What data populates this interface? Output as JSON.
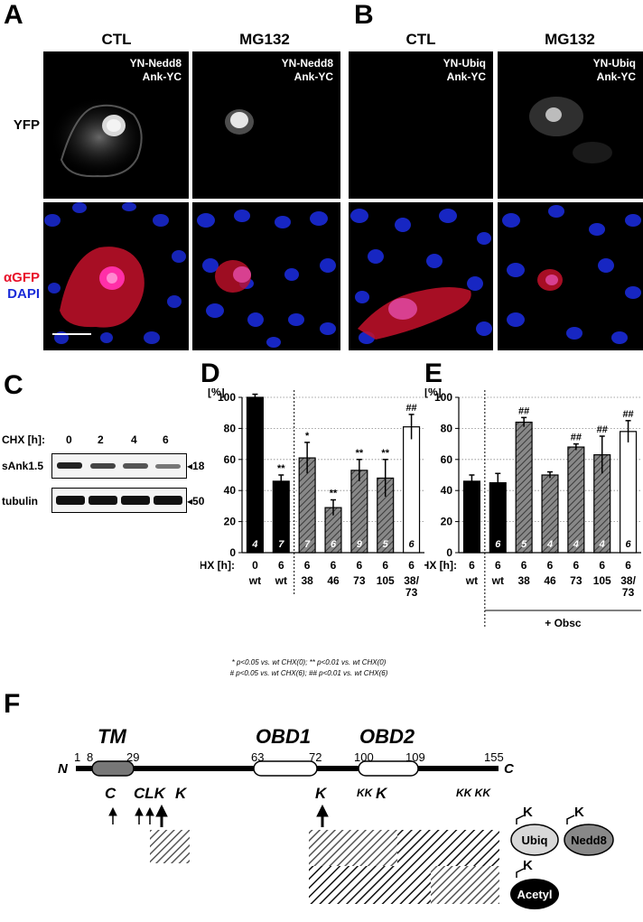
{
  "panel_letters": {
    "A": "A",
    "B": "B",
    "C": "C",
    "D": "D",
    "E": "E",
    "F": "F"
  },
  "panel_a": {
    "col1": "CTL",
    "col2": "MG132",
    "label1": "YN-Nedd8\nAnk-YC",
    "label2": "YN-Nedd8\nAnk-YC",
    "row1": "YFP",
    "row2_a": "αGFP",
    "row2_b": "DAPI"
  },
  "panel_b": {
    "col1": "CTL",
    "col2": "MG132",
    "label1": "YN-Ubiq\nAnk-YC",
    "label2": "YN-Ubiq\nAnk-YC"
  },
  "panel_c": {
    "chx_label": "CHX [h]:",
    "chx_values": [
      "0",
      "2",
      "4",
      "6"
    ],
    "bands": [
      {
        "name": "sAnk1.5",
        "marker": "18"
      },
      {
        "name": "tubulin",
        "marker": "50"
      }
    ]
  },
  "colors": {
    "red_stain": "#e8102a",
    "blue_stain": "#1a2bd8",
    "black_bar": "#000000",
    "hatched_bar": "#777777",
    "white_bar": "#ffffff"
  },
  "chart_data": [
    {
      "type": "bar",
      "panel": "D",
      "ylabel": "[%]",
      "ylim": [
        0,
        100
      ],
      "yticks": [
        0,
        20,
        40,
        60,
        80,
        100
      ],
      "grid": true,
      "categories": [
        "wt",
        "wt",
        "38",
        "46",
        "73",
        "105",
        "38/\n73"
      ],
      "chx_label": "CHX [h]:",
      "chx": [
        "0",
        "6",
        "6",
        "6",
        "6",
        "6",
        "6"
      ],
      "values": [
        100,
        46,
        61,
        29,
        53,
        48,
        81
      ],
      "errors": [
        2,
        4,
        10,
        5,
        7,
        12,
        8
      ],
      "n": [
        "4",
        "7",
        "7",
        "6",
        "9",
        "5",
        "6"
      ],
      "styles": [
        "black",
        "black",
        "hatched",
        "hatched",
        "hatched",
        "hatched",
        "white"
      ],
      "significance": [
        "",
        "**",
        "*",
        "**",
        "**",
        "**",
        "##"
      ],
      "footnote_line1": "* p<0.05 vs. wt CHX(0); ** p<0.01 vs. wt CHX(0)",
      "footnote_line2": "# p<0.05 vs. wt CHX(6); ## p<0.01 vs. wt CHX(6)"
    },
    {
      "type": "bar",
      "panel": "E",
      "ylabel": "[%]",
      "ylim": [
        0,
        100
      ],
      "yticks": [
        0,
        20,
        40,
        60,
        80,
        100
      ],
      "grid": true,
      "categories": [
        "wt",
        "wt",
        "38",
        "46",
        "73",
        "105",
        "38/\n73"
      ],
      "chx_label": "CHX [h]:",
      "chx": [
        "6",
        "6",
        "6",
        "6",
        "6",
        "6",
        "6"
      ],
      "values": [
        46,
        45,
        84,
        50,
        68,
        63,
        78
      ],
      "errors": [
        4,
        6,
        3,
        2,
        2,
        12,
        7
      ],
      "n": [
        "",
        "6",
        "5",
        "4",
        "4",
        "4",
        "6"
      ],
      "styles": [
        "black",
        "black",
        "hatched",
        "hatched",
        "hatched",
        "hatched",
        "white"
      ],
      "significance": [
        "",
        "",
        "##",
        "",
        "##",
        "##",
        "##"
      ],
      "obsc_label": "+ Obsc"
    }
  ],
  "panel_f": {
    "tm": "TM",
    "obd1": "OBD1",
    "obd2": "OBD2",
    "n_term": "N",
    "c_term": "C",
    "positions": [
      "1",
      "8",
      "29",
      "63",
      "72",
      "100",
      "109",
      "155"
    ],
    "residues": {
      "r1": "C",
      "r2": "CLK",
      "r3": "K",
      "r4": "K",
      "r5": "KK",
      "r6": "K",
      "r7": "KK KK"
    },
    "legend": {
      "ubiq": "Ubiq",
      "nedd8": "Nedd8",
      "acetyl": "Acetyl",
      "k": "K"
    }
  }
}
